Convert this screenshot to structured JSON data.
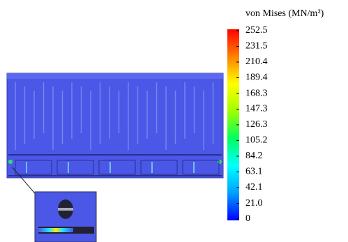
{
  "chart_data": {
    "type": "contour",
    "colorbar_title": "von Mises (MN/m²)",
    "clim": [
      0,
      252.5
    ],
    "ticks": [
      0,
      {
        "value": 21,
        "label": "21.0"
      },
      42.1,
      63.1,
      84.2,
      105.2,
      126.3,
      147.3,
      168.3,
      189.4,
      210.4,
      231.5,
      252.5
    ],
    "colormap": [
      "#0000ff",
      "#00a0ff",
      "#00ffff",
      "#00ff60",
      "#a0ff00",
      "#ffff00",
      "#ff8000",
      "#ff0000"
    ]
  }
}
